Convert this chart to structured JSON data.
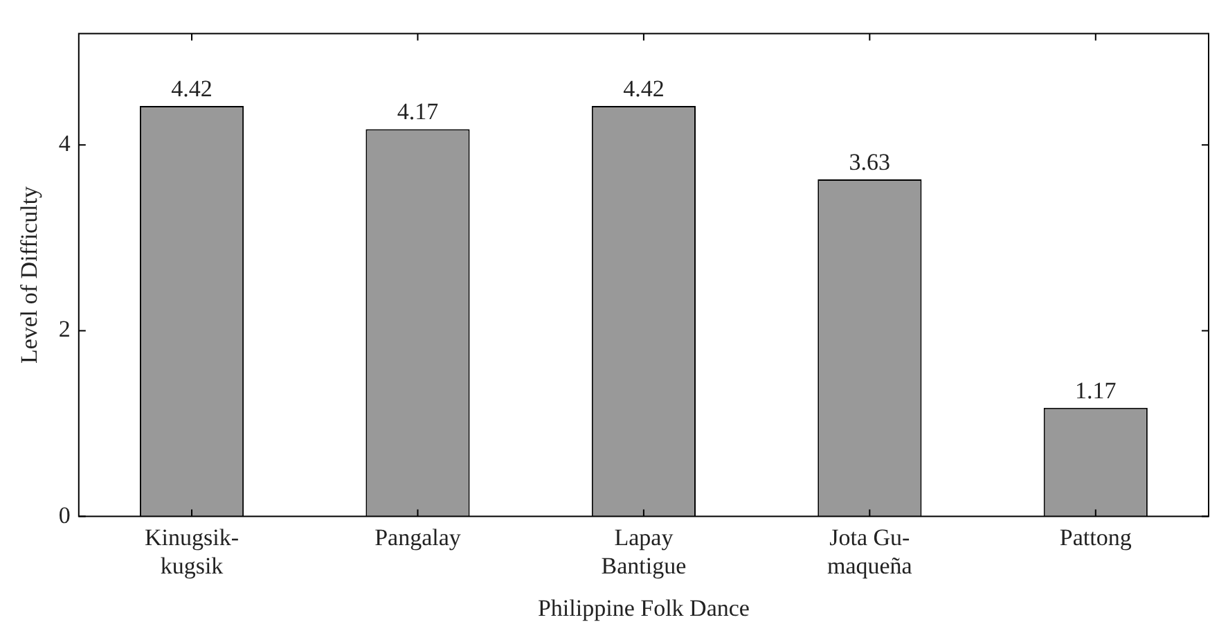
{
  "chart_data": {
    "type": "bar",
    "xlabel": "Philippine Folk Dance",
    "ylabel": "Level of Difficulty",
    "categories": [
      "Kinugsik-kugsik",
      "Pangalay",
      "Lapay Bantigue",
      "Jota Gu-maqueña",
      "Pattong"
    ],
    "values": [
      4.42,
      4.17,
      4.42,
      3.63,
      1.17
    ],
    "color": "#999999",
    "ylim": [
      0,
      5.2
    ],
    "yticks": [
      0,
      2,
      4
    ],
    "grid": false,
    "legend": false,
    "data_labels": true
  }
}
